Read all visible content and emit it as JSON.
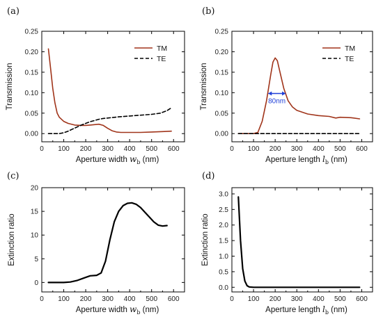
{
  "chart_data": [
    {
      "panel": "(a)",
      "type": "line",
      "xlabel": "Aperture width",
      "xlabel_var": "w",
      "xlabel_sub": "b",
      "xlabel_unit": "(nm)",
      "ylabel": "Transmission",
      "xlim": [
        0,
        650
      ],
      "ylim": [
        -0.02,
        0.25
      ],
      "xticks": [
        0,
        100,
        200,
        300,
        400,
        500,
        600
      ],
      "yticks": [
        0.0,
        0.05,
        0.1,
        0.15,
        0.2,
        0.25
      ],
      "ytick_labels": [
        "0.00",
        "0.05",
        "0.10",
        "0.15",
        "0.20",
        "0.25"
      ],
      "legend": [
        "TM",
        "TE"
      ],
      "legend_position": "top-right",
      "series": [
        {
          "name": "TM",
          "color": "#a0341a",
          "style": "solid",
          "x": [
            30,
            40,
            50,
            60,
            70,
            80,
            100,
            120,
            150,
            180,
            200,
            220,
            240,
            260,
            280,
            300,
            320,
            340,
            360,
            380,
            400,
            450,
            500,
            550,
            590
          ],
          "y": [
            0.207,
            0.16,
            0.11,
            0.075,
            0.05,
            0.04,
            0.03,
            0.025,
            0.021,
            0.02,
            0.02,
            0.021,
            0.022,
            0.023,
            0.02,
            0.013,
            0.007,
            0.004,
            0.003,
            0.003,
            0.003,
            0.003,
            0.004,
            0.005,
            0.006
          ]
        },
        {
          "name": "TE",
          "color": "#000000",
          "style": "dashed",
          "x": [
            30,
            60,
            80,
            100,
            120,
            140,
            160,
            180,
            200,
            220,
            240,
            260,
            280,
            300,
            350,
            400,
            450,
            500,
            540,
            570,
            590
          ],
          "y": [
            0.0,
            0.0,
            0.0,
            0.002,
            0.006,
            0.011,
            0.016,
            0.021,
            0.025,
            0.029,
            0.032,
            0.035,
            0.037,
            0.038,
            0.041,
            0.043,
            0.045,
            0.047,
            0.05,
            0.056,
            0.063
          ]
        }
      ]
    },
    {
      "panel": "(b)",
      "type": "line",
      "xlabel": "Aperture length",
      "xlabel_var": "l",
      "xlabel_sub": "b",
      "xlabel_unit": "(nm)",
      "ylabel": "Transmission",
      "xlim": [
        0,
        650
      ],
      "ylim": [
        -0.02,
        0.25
      ],
      "xticks": [
        0,
        100,
        200,
        300,
        400,
        500,
        600
      ],
      "yticks": [
        0.0,
        0.05,
        0.1,
        0.15,
        0.2,
        0.25
      ],
      "ytick_labels": [
        "0.00",
        "0.05",
        "0.10",
        "0.15",
        "0.20",
        "0.25"
      ],
      "legend": [
        "TM",
        "TE"
      ],
      "legend_position": "top-right",
      "annotation": {
        "text": "80nm",
        "from_x": 168,
        "to_x": 248,
        "y": 0.098
      },
      "series": [
        {
          "name": "TM",
          "color": "#a0341a",
          "style": "solid",
          "x": [
            30,
            80,
            100,
            120,
            140,
            160,
            180,
            190,
            200,
            210,
            220,
            240,
            260,
            280,
            300,
            350,
            400,
            450,
            480,
            500,
            550,
            590
          ],
          "y": [
            0.0,
            0.0,
            0.0,
            0.003,
            0.03,
            0.08,
            0.145,
            0.175,
            0.185,
            0.178,
            0.155,
            0.11,
            0.08,
            0.065,
            0.057,
            0.048,
            0.044,
            0.042,
            0.038,
            0.04,
            0.039,
            0.036
          ]
        },
        {
          "name": "TE",
          "color": "#000000",
          "style": "dashed",
          "x": [
            30,
            590
          ],
          "y": [
            0.0,
            0.0
          ]
        }
      ]
    },
    {
      "panel": "(c)",
      "type": "line",
      "xlabel": "Aperture width",
      "xlabel_var": "w",
      "xlabel_sub": "b",
      "xlabel_unit": "(nm)",
      "ylabel": "Extinction ratio",
      "xlim": [
        0,
        650
      ],
      "ylim": [
        -2,
        20
      ],
      "xticks": [
        0,
        100,
        200,
        300,
        400,
        500,
        600
      ],
      "yticks": [
        0,
        5,
        10,
        15,
        20
      ],
      "ytick_labels": [
        "0",
        "5",
        "10",
        "15",
        "20"
      ],
      "series": [
        {
          "name": "",
          "color": "#000000",
          "style": "solid",
          "x": [
            30,
            60,
            100,
            130,
            160,
            190,
            220,
            250,
            270,
            290,
            310,
            330,
            350,
            370,
            390,
            410,
            430,
            450,
            470,
            490,
            510,
            530,
            550,
            570
          ],
          "y": [
            0,
            0,
            0,
            0.1,
            0.4,
            0.9,
            1.4,
            1.5,
            2.0,
            4.5,
            9.0,
            12.8,
            15.0,
            16.2,
            16.7,
            16.8,
            16.5,
            15.8,
            14.8,
            13.8,
            12.8,
            12.1,
            11.9,
            12.0
          ]
        }
      ]
    },
    {
      "panel": "(d)",
      "type": "line",
      "xlabel": "Aperture length",
      "xlabel_var": "l",
      "xlabel_sub": "b",
      "xlabel_unit": "(nm)",
      "ylabel": "Extinction ratio",
      "xlim": [
        0,
        650
      ],
      "ylim": [
        -0.15,
        3.2
      ],
      "xticks": [
        0,
        100,
        200,
        300,
        400,
        500,
        600
      ],
      "yticks": [
        0.0,
        0.5,
        1.0,
        1.5,
        2.0,
        2.5,
        3.0
      ],
      "ytick_labels": [
        "0.0",
        "0.5",
        "1.0",
        "1.5",
        "2.0",
        "2.5",
        "3.0"
      ],
      "series": [
        {
          "name": "",
          "color": "#000000",
          "style": "solid",
          "x": [
            30,
            40,
            50,
            60,
            70,
            80,
            100,
            150,
            200,
            300,
            400,
            500,
            590
          ],
          "y": [
            2.9,
            1.5,
            0.6,
            0.2,
            0.05,
            0.01,
            0.0,
            0.0,
            0.0,
            0.0,
            0.0,
            0.0,
            0.0
          ]
        }
      ]
    }
  ]
}
